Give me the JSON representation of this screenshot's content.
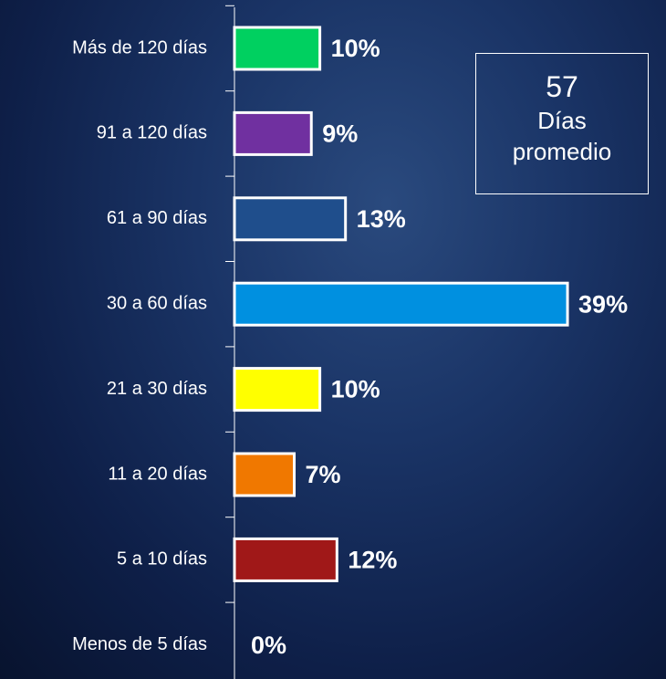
{
  "chart_data": {
    "type": "barh",
    "categories": [
      "Más de 120 días",
      "91 a 120 días",
      "61 a 90 días",
      "30 a 60 días",
      "21 a 30 días",
      "11 a 20 días",
      "5 a 10 días",
      "Menos de 5 días"
    ],
    "values": [
      10,
      9,
      13,
      39,
      10,
      7,
      12,
      0
    ],
    "value_labels": [
      "10%",
      "9%",
      "13%",
      "39%",
      "10%",
      "7%",
      "12%",
      "0%"
    ],
    "colors": [
      "#00d060",
      "#7030a0",
      "#1f4e8c",
      "#0090e0",
      "#ffff00",
      "#f07800",
      "#a01818",
      "#808080"
    ],
    "xlim": [
      0,
      50
    ],
    "annotation": {
      "value": 57,
      "text": "Días promedio"
    }
  }
}
